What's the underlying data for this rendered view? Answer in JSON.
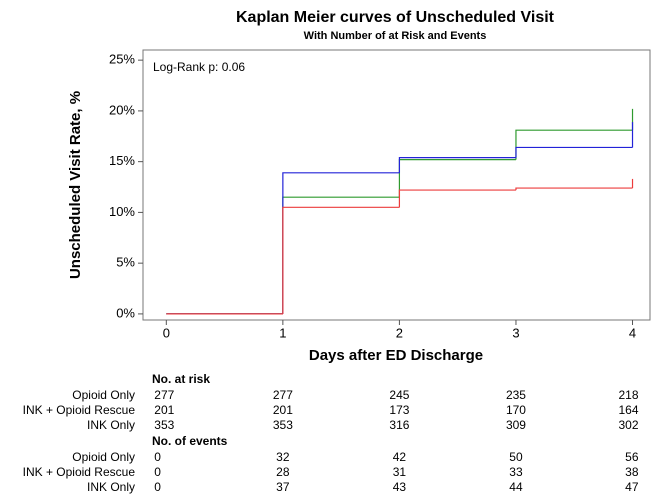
{
  "chart_data": {
    "type": "step",
    "title": "Kaplan Meier curves of Unscheduled Visit",
    "subtitle": "With Number of at Risk and Events",
    "annotation": "Log-Rank p: 0.06",
    "x_label": "Days after ED Discharge",
    "y_label": "Unscheduled Visit Rate, %",
    "xlim": [
      -0.2,
      4.15
    ],
    "ylim": [
      -0.6,
      26
    ],
    "xticks": [
      0,
      1,
      2,
      3,
      4
    ],
    "yticks": [
      {
        "value": 0,
        "label": "0%"
      },
      {
        "value": 5,
        "label": "5%"
      },
      {
        "value": 10,
        "label": "10%"
      },
      {
        "value": 15,
        "label": "15%"
      },
      {
        "value": 20,
        "label": "20%"
      },
      {
        "value": 25,
        "label": "25%"
      }
    ],
    "x": [
      0,
      1,
      2,
      3,
      4
    ],
    "series": [
      {
        "name": "Opioid Only",
        "color": "#2e9a2e",
        "values": [
          0,
          11.5,
          15.2,
          18.1,
          20.2
        ]
      },
      {
        "name": "INK + Opioid Rescue",
        "color": "#2323d8",
        "values": [
          0,
          13.9,
          15.4,
          16.4,
          18.9
        ]
      },
      {
        "name": "INK Only",
        "color": "#ec3c3c",
        "values": [
          0,
          10.5,
          12.2,
          12.4,
          13.3
        ]
      }
    ],
    "risk_table": {
      "title": "No. at risk",
      "rows": [
        [
          277,
          277,
          245,
          235,
          218
        ],
        [
          201,
          201,
          173,
          170,
          164
        ],
        [
          353,
          353,
          316,
          309,
          302
        ]
      ]
    },
    "events_table": {
      "title": "No. of events",
      "rows": [
        [
          0,
          32,
          42,
          50,
          56
        ],
        [
          0,
          28,
          31,
          33,
          38
        ],
        [
          0,
          37,
          43,
          44,
          47
        ]
      ]
    }
  }
}
